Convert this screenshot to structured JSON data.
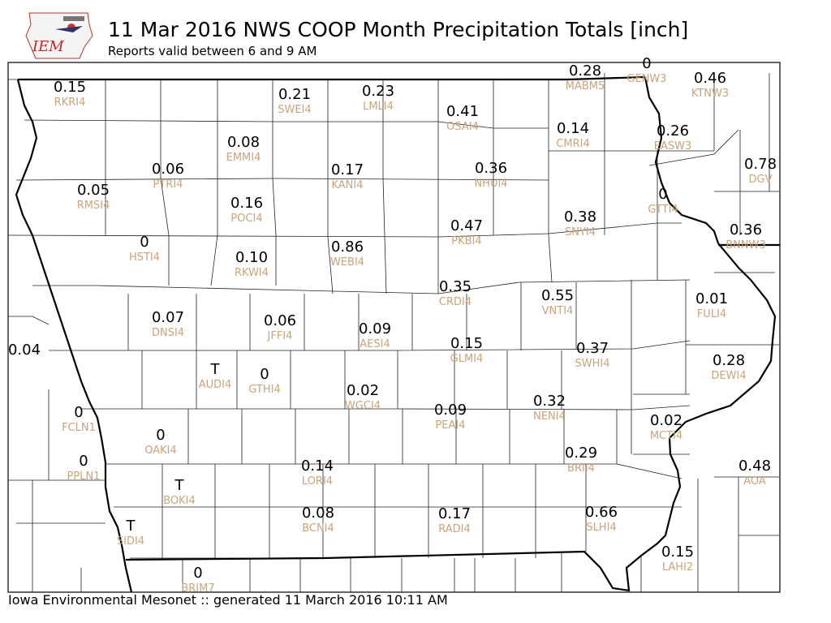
{
  "header": {
    "logo_text": "IEM",
    "title": "11 Mar 2016 NWS COOP Month Precipitation Totals [inch]",
    "subtitle": "Reports valid between 6 and 9 AM"
  },
  "footer": {
    "text": "Iowa Environmental Mesonet :: generated 11 March 2016 10:11 AM"
  },
  "colors": {
    "value_text": "#000000",
    "station_id_text": "#c8a47a",
    "borders": "#000000"
  },
  "stations": [
    {
      "id": "RKRI4",
      "value": "0.15"
    },
    {
      "id": "SWEI4",
      "value": "0.21"
    },
    {
      "id": "LMLI4",
      "value": "0.23"
    },
    {
      "id": "MABM5",
      "value": "0.28"
    },
    {
      "id": "GENW3",
      "value": "0"
    },
    {
      "id": "KTNW3",
      "value": "0.46"
    },
    {
      "id": "OSAI4",
      "value": "0.41"
    },
    {
      "id": "CMRI4",
      "value": "0.14"
    },
    {
      "id": "EASW3",
      "value": "0.26"
    },
    {
      "id": "EMMI4",
      "value": "0.08"
    },
    {
      "id": "PTRI4",
      "value": "0.06"
    },
    {
      "id": "KANI4",
      "value": "0.17"
    },
    {
      "id": "NHUI4",
      "value": "0.36"
    },
    {
      "id": "DGV",
      "value": "0.78"
    },
    {
      "id": "RMSI4",
      "value": "0.05"
    },
    {
      "id": "POCI4",
      "value": "0.16"
    },
    {
      "id": "GTTI4",
      "value": "0"
    },
    {
      "id": "PKBI4",
      "value": "0.47"
    },
    {
      "id": "SNYI4",
      "value": "0.38"
    },
    {
      "id": "BNNW3",
      "value": "0.36"
    },
    {
      "id": "HSTI4",
      "value": "0"
    },
    {
      "id": "WEBI4",
      "value": "0.86"
    },
    {
      "id": "RKWI4",
      "value": "0.10"
    },
    {
      "id": "CRDI4",
      "value": "0.35"
    },
    {
      "id": "VNTI4",
      "value": "0.55"
    },
    {
      "id": "FULI4",
      "value": "0.01"
    },
    {
      "id": "DNSI4",
      "value": "0.07"
    },
    {
      "id": "JFFI4",
      "value": "0.06"
    },
    {
      "id": "AESI4",
      "value": "0.09"
    },
    {
      "id": "",
      "value": "0.04"
    },
    {
      "id": "GLMI4",
      "value": "0.15"
    },
    {
      "id": "SWHI4",
      "value": "0.37"
    },
    {
      "id": "DEWI4",
      "value": "0.28"
    },
    {
      "id": "AUDI4",
      "value": "T"
    },
    {
      "id": "GTHI4",
      "value": "0"
    },
    {
      "id": "WGCI4",
      "value": "0.02"
    },
    {
      "id": "PEAI4",
      "value": "0.09"
    },
    {
      "id": "NENI4",
      "value": "0.32"
    },
    {
      "id": "FCLN1",
      "value": "0"
    },
    {
      "id": "MCTI4",
      "value": "0.02"
    },
    {
      "id": "OAKI4",
      "value": "0"
    },
    {
      "id": "PPLN1",
      "value": "0"
    },
    {
      "id": "LORI4",
      "value": "0.14"
    },
    {
      "id": "BRII4",
      "value": "0.29"
    },
    {
      "id": "AOA",
      "value": "0.48"
    },
    {
      "id": "BOKI4",
      "value": "T"
    },
    {
      "id": "BCNI4",
      "value": "0.08"
    },
    {
      "id": "RADI4",
      "value": "0.17"
    },
    {
      "id": "SLHI4",
      "value": "0.66"
    },
    {
      "id": "SIDI4",
      "value": "T"
    },
    {
      "id": "LAHI2",
      "value": "0.15"
    },
    {
      "id": "BRIM7",
      "value": "0"
    }
  ]
}
